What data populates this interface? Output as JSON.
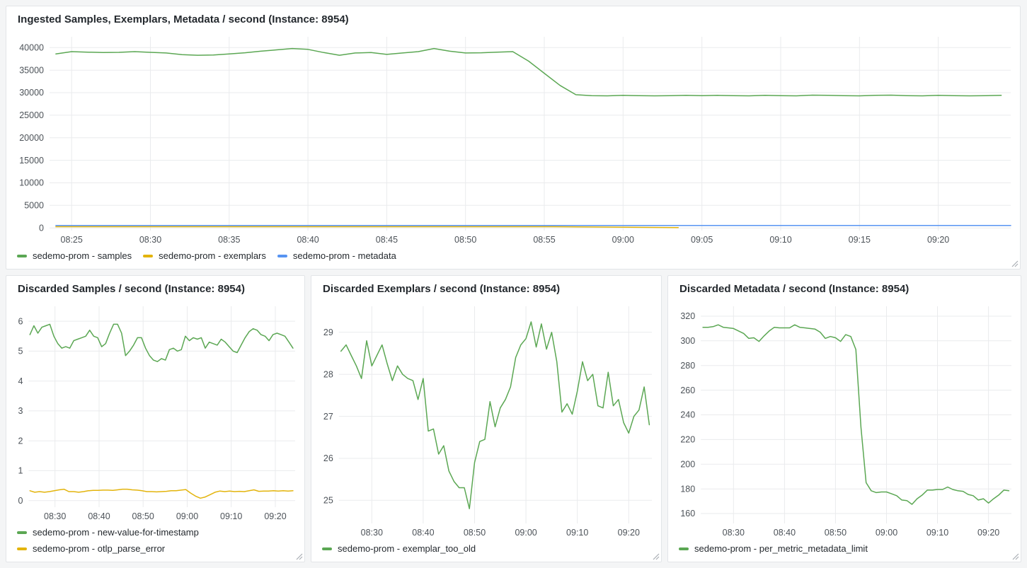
{
  "colors": {
    "green": "#5BA753",
    "yellow": "#E3B40C",
    "blue": "#5794F2"
  },
  "panels": [
    {
      "title": "Ingested Samples, Exemplars, Metadata / second (Instance: 8954)",
      "legend": [
        {
          "label": "sedemo-prom - samples",
          "color_key": "green"
        },
        {
          "label": "sedemo-prom - exemplars",
          "color_key": "yellow"
        },
        {
          "label": "sedemo-prom - metadata",
          "color_key": "blue"
        }
      ]
    },
    {
      "title": "Discarded Samples / second (Instance: 8954)",
      "legend": [
        {
          "label": "sedemo-prom - new-value-for-timestamp",
          "color_key": "green"
        },
        {
          "label": "sedemo-prom - otlp_parse_error",
          "color_key": "yellow"
        }
      ]
    },
    {
      "title": "Discarded Exemplars / second (Instance: 8954)",
      "legend": [
        {
          "label": "sedemo-prom - exemplar_too_old",
          "color_key": "green"
        }
      ]
    },
    {
      "title": "Discarded Metadata / second (Instance: 8954)",
      "legend": [
        {
          "label": "sedemo-prom - per_metric_metadata_limit",
          "color_key": "green"
        }
      ]
    }
  ],
  "chart_data": [
    {
      "type": "line",
      "title": "Ingested Samples, Exemplars, Metadata / second (Instance: 8954)",
      "xlabel": "time",
      "ylabel": "",
      "grid": true,
      "legend_position": "bottom",
      "xlim": [
        23.6,
        84.6
      ],
      "ylim": [
        -600,
        42400
      ],
      "x_ticks": [
        {
          "t": 25,
          "label": "08:25"
        },
        {
          "t": 30,
          "label": "08:30"
        },
        {
          "t": 35,
          "label": "08:35"
        },
        {
          "t": 40,
          "label": "08:40"
        },
        {
          "t": 45,
          "label": "08:45"
        },
        {
          "t": 50,
          "label": "08:50"
        },
        {
          "t": 55,
          "label": "08:55"
        },
        {
          "t": 60,
          "label": "09:00"
        },
        {
          "t": 65,
          "label": "09:05"
        },
        {
          "t": 70,
          "label": "09:10"
        },
        {
          "t": 75,
          "label": "09:15"
        },
        {
          "t": 80,
          "label": "09:20"
        }
      ],
      "y_ticks": [
        {
          "v": 0,
          "label": "0"
        },
        {
          "v": 5000,
          "label": "5000"
        },
        {
          "v": 10000,
          "label": "10000"
        },
        {
          "v": 15000,
          "label": "15000"
        },
        {
          "v": 20000,
          "label": "20000"
        },
        {
          "v": 25000,
          "label": "25000"
        },
        {
          "v": 30000,
          "label": "30000"
        },
        {
          "v": 35000,
          "label": "35000"
        },
        {
          "v": 40000,
          "label": "40000"
        }
      ],
      "series": [
        {
          "name": "sedemo-prom - samples",
          "color_key": "green",
          "x_start": 24,
          "x_end": 84,
          "values": [
            38600,
            39100,
            39000,
            38900,
            38950,
            39100,
            38950,
            38800,
            38450,
            38300,
            38350,
            38600,
            38850,
            39200,
            39500,
            39800,
            39600,
            38900,
            38300,
            38800,
            38900,
            38500,
            38800,
            39100,
            39800,
            39200,
            38800,
            38850,
            39000,
            39100,
            37000,
            34300,
            31600,
            29550,
            29350,
            29300,
            29400,
            29350,
            29300,
            29350,
            29400,
            29350,
            29400,
            29350,
            29300,
            29400,
            29350,
            29300,
            29450,
            29400,
            29350,
            29300,
            29400,
            29450,
            29350,
            29300,
            29400,
            29350,
            29300,
            29350,
            29400
          ]
        },
        {
          "name": "sedemo-prom - exemplars",
          "color_key": "yellow",
          "x_start": 24,
          "x_end": 63.5,
          "values": [
            260,
            260,
            260,
            260,
            260,
            80
          ]
        },
        {
          "name": "sedemo-prom - metadata",
          "color_key": "blue",
          "x_start": 24,
          "x_end": 84.6,
          "values": [
            540,
            540
          ]
        }
      ]
    },
    {
      "type": "line",
      "title": "Discarded Samples / second (Instance: 8954)",
      "xlabel": "time",
      "ylabel": "",
      "grid": true,
      "legend_position": "bottom",
      "xlim": [
        24,
        84.5
      ],
      "ylim": [
        -0.22,
        6.5
      ],
      "x_ticks": [
        {
          "t": 30,
          "label": "08:30"
        },
        {
          "t": 40,
          "label": "08:40"
        },
        {
          "t": 50,
          "label": "08:50"
        },
        {
          "t": 60,
          "label": "09:00"
        },
        {
          "t": 70,
          "label": "09:10"
        },
        {
          "t": 80,
          "label": "09:20"
        }
      ],
      "y_ticks": [
        {
          "v": 0,
          "label": "0"
        },
        {
          "v": 1,
          "label": "1"
        },
        {
          "v": 2,
          "label": "2"
        },
        {
          "v": 3,
          "label": "3"
        },
        {
          "v": 4,
          "label": "4"
        },
        {
          "v": 5,
          "label": "5"
        },
        {
          "v": 6,
          "label": "6"
        }
      ],
      "series": [
        {
          "name": "sedemo-prom - new-value-for-timestamp",
          "color_key": "green",
          "x_start": 24.3,
          "x_end": 84,
          "values": [
            5.55,
            5.85,
            5.6,
            5.8,
            5.85,
            5.9,
            5.5,
            5.25,
            5.1,
            5.15,
            5.1,
            5.35,
            5.4,
            5.45,
            5.5,
            5.7,
            5.5,
            5.45,
            5.15,
            5.25,
            5.6,
            5.9,
            5.9,
            5.6,
            4.85,
            5.0,
            5.2,
            5.45,
            5.45,
            5.1,
            4.85,
            4.7,
            4.65,
            4.75,
            4.7,
            5.05,
            5.1,
            5.0,
            5.05,
            5.5,
            5.35,
            5.45,
            5.4,
            5.45,
            5.1,
            5.3,
            5.25,
            5.2,
            5.4,
            5.3,
            5.15,
            5.0,
            4.95,
            5.2,
            5.45,
            5.65,
            5.75,
            5.7,
            5.55,
            5.5,
            5.35,
            5.55,
            5.6,
            5.55,
            5.5,
            5.3,
            5.1
          ]
        },
        {
          "name": "sedemo-prom - otlp_parse_error",
          "color_key": "yellow",
          "x_start": 24.3,
          "x_end": 84,
          "values": [
            0.33,
            0.28,
            0.3,
            0.28,
            0.3,
            0.33,
            0.36,
            0.38,
            0.3,
            0.3,
            0.28,
            0.3,
            0.33,
            0.34,
            0.34,
            0.35,
            0.35,
            0.34,
            0.36,
            0.38,
            0.38,
            0.36,
            0.35,
            0.33,
            0.3,
            0.3,
            0.29,
            0.3,
            0.31,
            0.33,
            0.33,
            0.35,
            0.37,
            0.25,
            0.15,
            0.08,
            0.12,
            0.2,
            0.28,
            0.32,
            0.3,
            0.32,
            0.3,
            0.31,
            0.3,
            0.33,
            0.36,
            0.31,
            0.32,
            0.32,
            0.33,
            0.32,
            0.33,
            0.32,
            0.33
          ]
        }
      ]
    },
    {
      "type": "line",
      "title": "Discarded Exemplars / second (Instance: 8954)",
      "xlabel": "time",
      "ylabel": "",
      "grid": true,
      "legend_position": "bottom",
      "xlim": [
        23.6,
        84.5
      ],
      "ylim": [
        24.45,
        29.62
      ],
      "x_ticks": [
        {
          "t": 30,
          "label": "08:30"
        },
        {
          "t": 40,
          "label": "08:40"
        },
        {
          "t": 50,
          "label": "08:50"
        },
        {
          "t": 60,
          "label": "09:00"
        },
        {
          "t": 70,
          "label": "09:10"
        },
        {
          "t": 80,
          "label": "09:20"
        }
      ],
      "y_ticks": [
        {
          "v": 25,
          "label": "25"
        },
        {
          "v": 26,
          "label": "26"
        },
        {
          "v": 27,
          "label": "27"
        },
        {
          "v": 28,
          "label": "28"
        },
        {
          "v": 29,
          "label": "29"
        }
      ],
      "series": [
        {
          "name": "sedemo-prom - exemplar_too_old",
          "color_key": "green",
          "x_start": 24,
          "x_end": 84,
          "values": [
            28.55,
            28.7,
            28.45,
            28.2,
            27.9,
            28.8,
            28.2,
            28.45,
            28.7,
            28.25,
            27.85,
            28.2,
            28.0,
            27.9,
            27.85,
            27.4,
            27.9,
            26.65,
            26.7,
            26.1,
            26.3,
            25.7,
            25.45,
            25.3,
            25.3,
            24.8,
            25.9,
            26.4,
            26.45,
            27.35,
            26.75,
            27.2,
            27.4,
            27.7,
            28.4,
            28.7,
            28.85,
            29.25,
            28.65,
            29.2,
            28.6,
            29.0,
            28.3,
            27.1,
            27.3,
            27.05,
            27.6,
            28.3,
            27.85,
            28.0,
            27.25,
            27.2,
            28.05,
            27.25,
            27.4,
            26.85,
            26.6,
            27.0,
            27.15,
            27.7,
            26.8
          ]
        }
      ]
    },
    {
      "type": "line",
      "title": "Discarded Metadata / second (Instance: 8954)",
      "xlabel": "time",
      "ylabel": "",
      "grid": true,
      "legend_position": "bottom",
      "xlim": [
        23.6,
        84.5
      ],
      "ylim": [
        152,
        328
      ],
      "x_ticks": [
        {
          "t": 30,
          "label": "08:30"
        },
        {
          "t": 40,
          "label": "08:40"
        },
        {
          "t": 50,
          "label": "08:50"
        },
        {
          "t": 60,
          "label": "09:00"
        },
        {
          "t": 70,
          "label": "09:10"
        },
        {
          "t": 80,
          "label": "09:20"
        }
      ],
      "y_ticks": [
        {
          "v": 160,
          "label": "160"
        },
        {
          "v": 180,
          "label": "180"
        },
        {
          "v": 200,
          "label": "200"
        },
        {
          "v": 220,
          "label": "220"
        },
        {
          "v": 240,
          "label": "240"
        },
        {
          "v": 260,
          "label": "260"
        },
        {
          "v": 280,
          "label": "280"
        },
        {
          "v": 300,
          "label": "300"
        },
        {
          "v": 320,
          "label": "320"
        }
      ],
      "series": [
        {
          "name": "sedemo-prom - per_metric_metadata_limit",
          "color_key": "green",
          "x_start": 24,
          "x_end": 84,
          "values": [
            311,
            311,
            311.5,
            313,
            311,
            310.5,
            310,
            308,
            306,
            302,
            302.5,
            299.5,
            304,
            308,
            311,
            310.5,
            310.5,
            310.5,
            313,
            311,
            310.5,
            310,
            309.5,
            307,
            302,
            303.5,
            302.5,
            299.5,
            305,
            303.5,
            293,
            230,
            185,
            178.5,
            177,
            177.5,
            177.5,
            176,
            174.5,
            171,
            170.5,
            167.5,
            172,
            175,
            179,
            179,
            179.5,
            179.5,
            181.5,
            179.5,
            178.5,
            178,
            175.5,
            174.5,
            171,
            172,
            168.5,
            172,
            175,
            179,
            178.5
          ]
        }
      ]
    }
  ]
}
